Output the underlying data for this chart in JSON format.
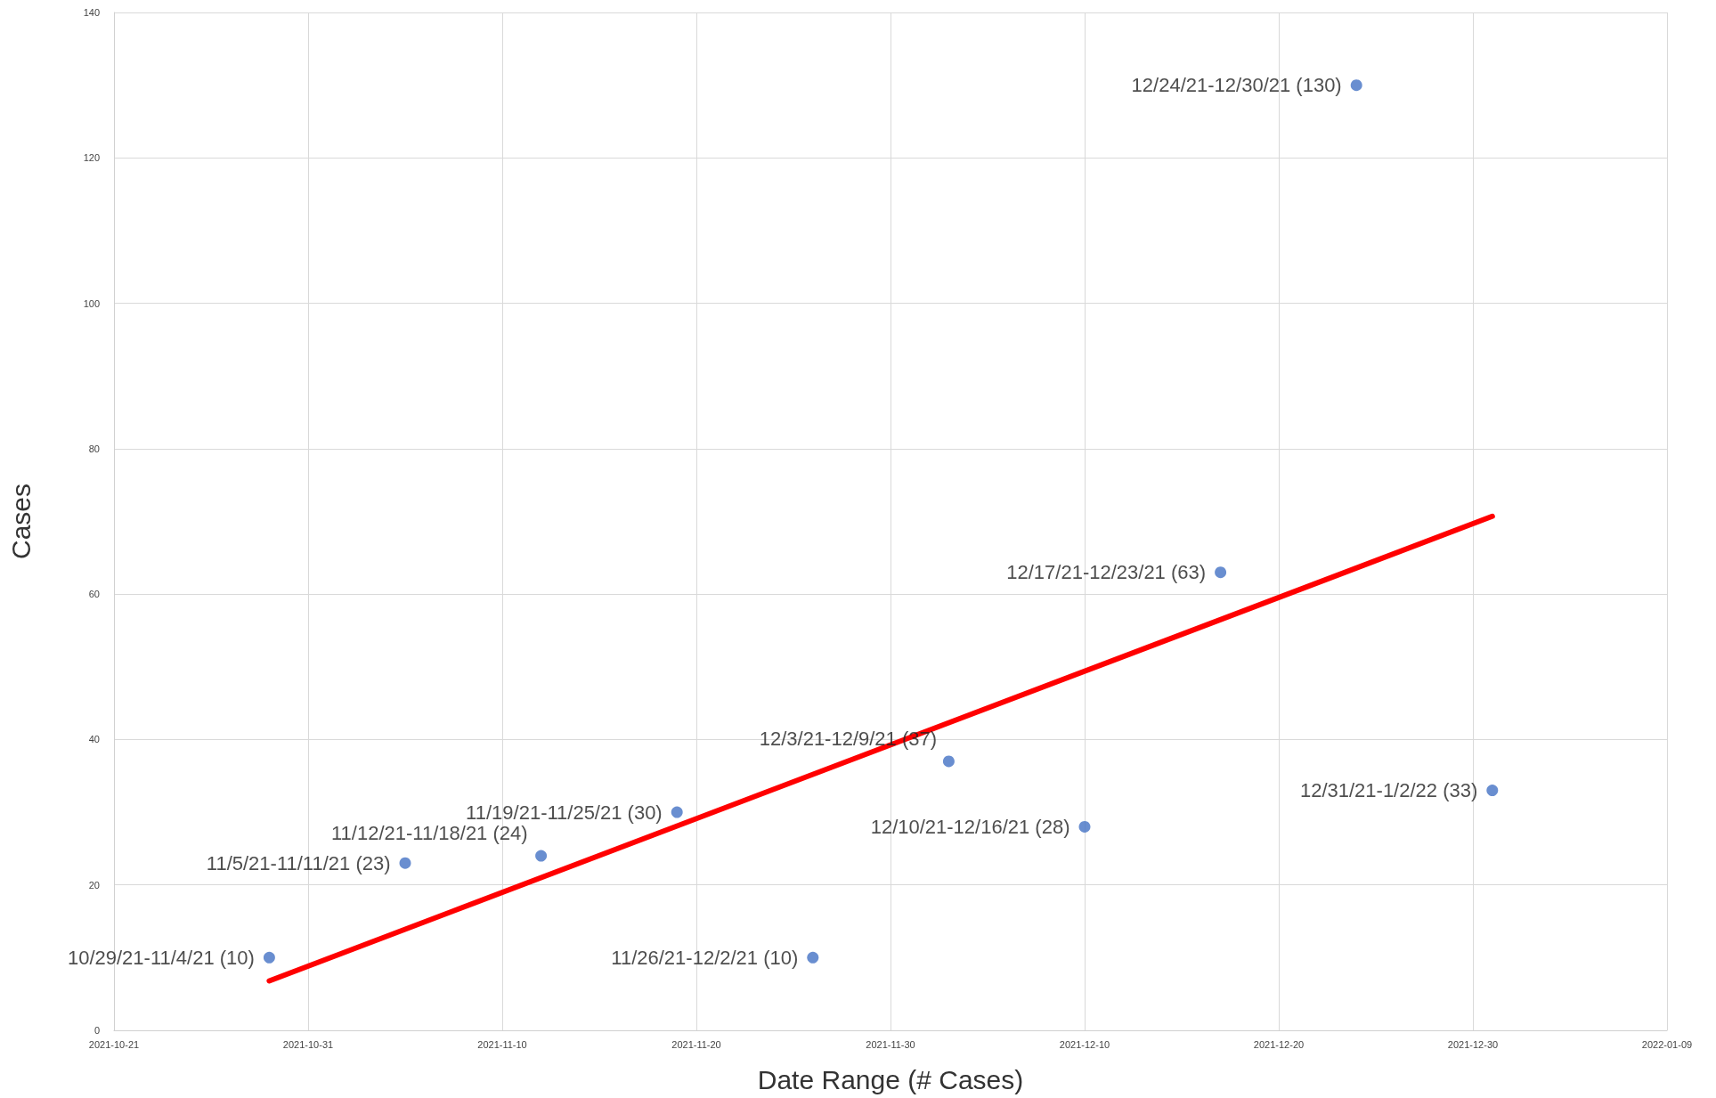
{
  "chart_data": {
    "type": "scatter",
    "xlabel": "Date Range (# Cases)",
    "ylabel": "Cases",
    "x": [
      "2021-10-29",
      "2021-11-05",
      "2021-11-12",
      "2021-11-19",
      "2021-11-26",
      "2021-12-03",
      "2021-12-10",
      "2021-12-17",
      "2021-12-24",
      "2021-12-31"
    ],
    "series": [
      {
        "type": "scatter",
        "color": "#4472c4",
        "values": [
          10,
          23,
          24,
          30,
          10,
          37,
          28,
          63,
          130,
          33
        ],
        "value_labels": [
          "10/29/21-11/4/21 (10)",
          "11/5/21-11/11/21 (23)",
          "11/12/21-11/18/21 (24)",
          "11/19/21-11/25/21 (30)",
          "11/26/21-12/2/21 (10)",
          "12/3/21-12/9/21 (37)",
          "12/10/21-12/16/21 (28)",
          "12/17/21-12/23/21 (63)",
          "12/24/21-12/30/21 (130)",
          "12/31/21-1/2/22 (33)"
        ]
      },
      {
        "type": "line",
        "color": "#ff0000",
        "x": [
          "2021-10-29",
          "2021-12-31"
        ],
        "values": [
          6.8,
          70.7
        ],
        "marker": "none"
      }
    ],
    "xlim": [
      "2021-10-21",
      "2022-01-09"
    ],
    "xticks": [
      "2021-10-21",
      "2021-10-31",
      "2021-11-10",
      "2021-11-20",
      "2021-11-30",
      "2021-12-10",
      "2021-12-20",
      "2021-12-30",
      "2022-01-09"
    ],
    "ylim": [
      0,
      140
    ],
    "yticks": [
      0,
      20,
      40,
      60,
      80,
      100,
      120,
      140
    ],
    "grid": true,
    "marker": "circle"
  }
}
